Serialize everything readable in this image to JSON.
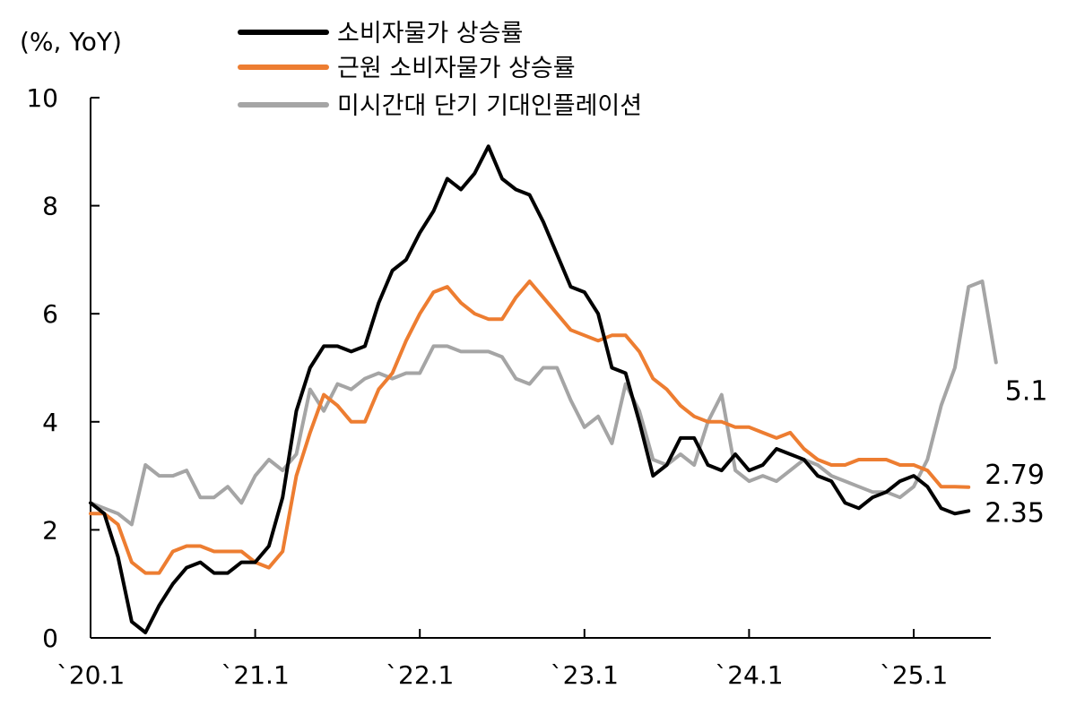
{
  "chart_data": {
    "type": "line",
    "unit_label": "(%, YoY)",
    "title": "",
    "xlabel": "",
    "ylabel": "",
    "ylim": [
      0,
      10
    ],
    "yticks": [
      0,
      2,
      4,
      6,
      8,
      10
    ],
    "xlim": [
      "2020-01",
      "2025-08"
    ],
    "xtick_labels": [
      "`20.1",
      "`21.1",
      "`22.1",
      "`23.1",
      "`24.1",
      "`25.1"
    ],
    "x_start": "2020-01",
    "x_interval": "month",
    "grid": false,
    "legend_position": "top",
    "series": [
      {
        "name": "소비자물가 상승률",
        "color": "#000000",
        "end_label": "2.35",
        "values": [
          2.5,
          2.3,
          1.5,
          0.3,
          0.1,
          0.6,
          1.0,
          1.3,
          1.4,
          1.2,
          1.2,
          1.4,
          1.4,
          1.7,
          2.6,
          4.2,
          5.0,
          5.4,
          5.4,
          5.3,
          5.4,
          6.2,
          6.8,
          7.0,
          7.5,
          7.9,
          8.5,
          8.3,
          8.6,
          9.1,
          8.5,
          8.3,
          8.2,
          7.7,
          7.1,
          6.5,
          6.4,
          6.0,
          5.0,
          4.9,
          4.0,
          3.0,
          3.2,
          3.7,
          3.7,
          3.2,
          3.1,
          3.4,
          3.1,
          3.2,
          3.5,
          3.4,
          3.3,
          3.0,
          2.9,
          2.5,
          2.4,
          2.6,
          2.7,
          2.9,
          3.0,
          2.8,
          2.4,
          2.3,
          2.35
        ]
      },
      {
        "name": "근원 소비자물가 상승률",
        "color": "#ED7D31",
        "end_label": "2.79",
        "values": [
          2.3,
          2.3,
          2.1,
          1.4,
          1.2,
          1.2,
          1.6,
          1.7,
          1.7,
          1.6,
          1.6,
          1.6,
          1.4,
          1.3,
          1.6,
          3.0,
          3.8,
          4.5,
          4.3,
          4.0,
          4.0,
          4.6,
          4.9,
          5.5,
          6.0,
          6.4,
          6.5,
          6.2,
          6.0,
          5.9,
          5.9,
          6.3,
          6.6,
          6.3,
          6.0,
          5.7,
          5.6,
          5.5,
          5.6,
          5.6,
          5.3,
          4.8,
          4.6,
          4.3,
          4.1,
          4.0,
          4.0,
          3.9,
          3.9,
          3.8,
          3.7,
          3.8,
          3.5,
          3.3,
          3.2,
          3.2,
          3.3,
          3.3,
          3.3,
          3.2,
          3.2,
          3.1,
          2.8,
          2.8,
          2.79
        ]
      },
      {
        "name": "미시간대 단기 기대인플레이션",
        "color": "#A5A5A5",
        "end_label": "5.1",
        "values": [
          2.5,
          2.4,
          2.3,
          2.1,
          3.2,
          3.0,
          3.0,
          3.1,
          2.6,
          2.6,
          2.8,
          2.5,
          3.0,
          3.3,
          3.1,
          3.4,
          4.6,
          4.2,
          4.7,
          4.6,
          4.8,
          4.9,
          4.8,
          4.9,
          4.9,
          5.4,
          5.4,
          5.3,
          5.3,
          5.3,
          5.2,
          4.8,
          4.7,
          5.0,
          5.0,
          4.4,
          3.9,
          4.1,
          3.6,
          4.7,
          4.2,
          3.3,
          3.2,
          3.4,
          3.2,
          4.0,
          4.5,
          3.1,
          2.9,
          3.0,
          2.9,
          3.1,
          3.3,
          3.2,
          3.0,
          2.9,
          2.8,
          2.7,
          2.7,
          2.6,
          2.8,
          3.3,
          4.3,
          5.0,
          6.5,
          6.6,
          5.1
        ]
      }
    ]
  }
}
